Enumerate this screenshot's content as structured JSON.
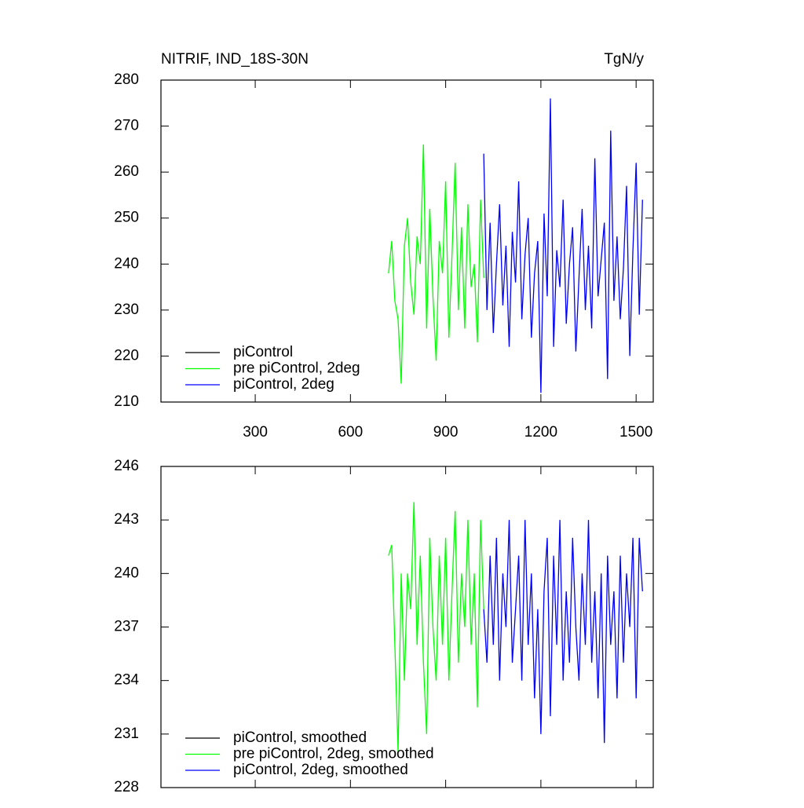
{
  "chart_data": [
    {
      "type": "line",
      "title": "NITRIF, IND_18S-30N",
      "units": "TgN/y",
      "xlim": [
        3,
        1554
      ],
      "ylim": [
        210,
        280
      ],
      "xticks": [
        300,
        600,
        900,
        1200,
        1500
      ],
      "yticks": [
        210,
        220,
        230,
        240,
        250,
        260,
        270,
        280
      ],
      "xtick_labels": true,
      "legend": "lower left",
      "series": [
        {
          "name": "piControl",
          "color": "#000000",
          "x": [],
          "values": []
        },
        {
          "name": "pre piControl, 2deg",
          "color": "#00ff00",
          "x": [
            720,
            730,
            740,
            750,
            760,
            770,
            780,
            790,
            800,
            810,
            820,
            830,
            840,
            850,
            860,
            870,
            880,
            890,
            900,
            910,
            920,
            930,
            940,
            950,
            960,
            970,
            980,
            990,
            1000,
            1010,
            1020
          ],
          "values": [
            238,
            245,
            232,
            228,
            214,
            244,
            250,
            236,
            229,
            246,
            240,
            266,
            226,
            252,
            233,
            219,
            245,
            238,
            258,
            224,
            242,
            262,
            230,
            248,
            226,
            253,
            235,
            240,
            223,
            254,
            237
          ]
        },
        {
          "name": "piControl, 2deg",
          "color": "#0000ff",
          "x": [
            1020,
            1030,
            1040,
            1050,
            1060,
            1070,
            1080,
            1090,
            1100,
            1110,
            1120,
            1130,
            1140,
            1150,
            1160,
            1170,
            1180,
            1190,
            1200,
            1210,
            1220,
            1230,
            1240,
            1250,
            1260,
            1270,
            1280,
            1290,
            1300,
            1310,
            1320,
            1330,
            1340,
            1350,
            1360,
            1370,
            1380,
            1390,
            1400,
            1410,
            1420,
            1430,
            1440,
            1450,
            1460,
            1470,
            1480,
            1490,
            1500,
            1510,
            1520
          ],
          "values": [
            264,
            230,
            249,
            225,
            240,
            253,
            231,
            244,
            222,
            247,
            236,
            258,
            228,
            242,
            250,
            224,
            238,
            245,
            212,
            251,
            233,
            276,
            222,
            243,
            235,
            254,
            227,
            240,
            248,
            221,
            237,
            252,
            230,
            244,
            226,
            263,
            233,
            241,
            249,
            215,
            269,
            232,
            246,
            228,
            239,
            257,
            220,
            243,
            262,
            229,
            254
          ]
        }
      ]
    },
    {
      "type": "line",
      "xlim": [
        3,
        1554
      ],
      "ylim": [
        228,
        246
      ],
      "xticks": [
        300,
        600,
        900,
        1200,
        1500
      ],
      "yticks": [
        228,
        231,
        234,
        237,
        240,
        243,
        246
      ],
      "xtick_labels": false,
      "legend": "lower left",
      "series": [
        {
          "name": "piControl, smoothed",
          "color": "#000000",
          "x": [],
          "values": []
        },
        {
          "name": "pre piControl, 2deg, smoothed",
          "color": "#00ff00",
          "x": [
            720,
            730,
            740,
            750,
            760,
            770,
            780,
            790,
            800,
            810,
            820,
            830,
            840,
            850,
            860,
            870,
            880,
            890,
            900,
            910,
            920,
            930,
            940,
            950,
            960,
            970,
            980,
            990,
            1000,
            1010,
            1020
          ],
          "values": [
            241,
            241.6,
            236,
            230,
            240,
            234,
            240,
            238,
            244,
            236,
            241,
            235,
            231,
            242,
            237,
            234,
            241,
            236,
            242,
            234,
            239,
            243.5,
            235,
            240,
            237,
            243,
            236,
            240,
            232.5,
            243,
            238
          ]
        },
        {
          "name": "piControl, 2deg, smoothed",
          "color": "#0000ff",
          "x": [
            1020,
            1030,
            1040,
            1050,
            1060,
            1070,
            1080,
            1090,
            1100,
            1110,
            1120,
            1130,
            1140,
            1150,
            1160,
            1170,
            1180,
            1190,
            1200,
            1210,
            1220,
            1230,
            1240,
            1250,
            1260,
            1270,
            1280,
            1290,
            1300,
            1310,
            1320,
            1330,
            1340,
            1350,
            1360,
            1370,
            1380,
            1390,
            1400,
            1410,
            1420,
            1430,
            1440,
            1450,
            1460,
            1470,
            1480,
            1490,
            1500,
            1510,
            1520
          ],
          "values": [
            238,
            235,
            241,
            236,
            242,
            234,
            240,
            237,
            243,
            235,
            238,
            241,
            234,
            243,
            236,
            240,
            233,
            238,
            231,
            239,
            242,
            232,
            241,
            236,
            243,
            234,
            239,
            235,
            242,
            237,
            234,
            240,
            236,
            243,
            235,
            239,
            233,
            240,
            230.5,
            241,
            236,
            239,
            233,
            241,
            235,
            240,
            237,
            242,
            233,
            242,
            239
          ]
        }
      ]
    }
  ]
}
